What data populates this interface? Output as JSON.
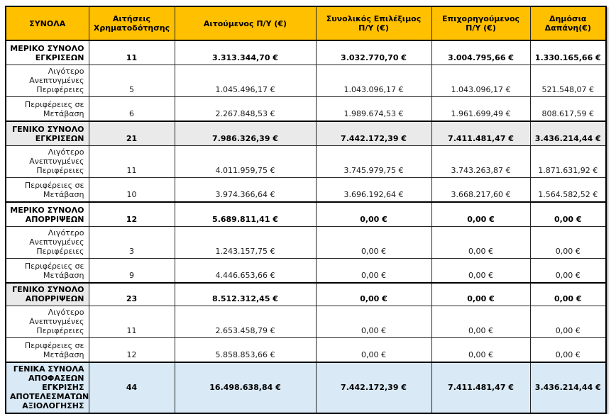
{
  "colors": {
    "header_bg": "#FFC000",
    "gray_row_bg": "#EAEAEA",
    "grand_total_bg": "#D9E9F5",
    "border": "#000000"
  },
  "table": {
    "columns": [
      {
        "label": "ΣΥΝΟΛΑ"
      },
      {
        "label": "Αιτήσεις Χρηματοδότησης"
      },
      {
        "label": "Αιτούμενος Π/Υ (€)"
      },
      {
        "label": "Συνολικός Επιλέξιμος Π/Υ (€)"
      },
      {
        "label": "Επιχορηγούμενος Π/Υ (€)"
      },
      {
        "label": "Δημόσια Δαπάνη(€)"
      }
    ],
    "rows": [
      {
        "variant": "section",
        "cells": [
          "ΜΕΡΙΚΟ ΣΥΝΟΛΟ ΕΓΚΡΙΣΕΩΝ",
          "11",
          "3.313.344,70 €",
          "3.032.770,70 €",
          "3.004.795,66 €",
          "1.330.165,66 €"
        ]
      },
      {
        "variant": "sub",
        "cells": [
          "Λιγότερο Ανεπτυγμένες Περιφέρειες",
          "5",
          "1.045.496,17 €",
          "1.043.096,17 €",
          "1.043.096,17 €",
          "521.548,07 €"
        ]
      },
      {
        "variant": "sub",
        "cells": [
          "Περιφέρειες σε Μετάβαση",
          "6",
          "2.267.848,53 €",
          "1.989.674,53 €",
          "1.961.699,49 €",
          "808.617,59 €"
        ]
      },
      {
        "variant": "section-gray",
        "cells": [
          "ΓΕΝΙΚΟ ΣΥΝΟΛΟ ΕΓΚΡΙΣΕΩΝ",
          "21",
          "7.986.326,39 €",
          "7.442.172,39 €",
          "7.411.481,47 €",
          "3.436.214,44 €"
        ]
      },
      {
        "variant": "sub",
        "cells": [
          "Λιγότερο Ανεπτυγμένες Περιφέρειες",
          "11",
          "4.011.959,75 €",
          "3.745.979,75 €",
          "3.743.263,87 €",
          "1.871.631,92 €"
        ]
      },
      {
        "variant": "sub",
        "cells": [
          "Περιφέρειες σε Μετάβαση",
          "10",
          "3.974.366,64 €",
          "3.696.192,64 €",
          "3.668.217,60 €",
          "1.564.582,52 €"
        ]
      },
      {
        "variant": "section",
        "cells": [
          "ΜΕΡΙΚΟ ΣΥΝΟΛΟ ΑΠΟΡΡΙΨΕΩΝ",
          "12",
          "5.689.811,41 €",
          "0,00 €",
          "0,00 €",
          "0,00 €"
        ]
      },
      {
        "variant": "sub",
        "cells": [
          "Λιγότερο Ανεπτυγμένες Περιφέρειες",
          "3",
          "1.243.157,75 €",
          "0,00 €",
          "0,00 €",
          "0,00 €"
        ]
      },
      {
        "variant": "sub",
        "cells": [
          "Περιφέρειες σε Μετάβαση",
          "9",
          "4.446.653,66 €",
          "0,00 €",
          "0,00 €",
          "0,00 €"
        ]
      },
      {
        "variant": "section-gray-label",
        "cells": [
          "ΓΕΝΙΚΟ ΣΥΝΟΛΟ ΑΠΟΡΡΙΨΕΩΝ",
          "23",
          "8.512.312,45 €",
          "0,00 €",
          "0,00 €",
          "0,00 €"
        ]
      },
      {
        "variant": "sub",
        "cells": [
          "Λιγότερο Ανεπτυγμένες Περιφέρειες",
          "11",
          "2.653.458,79 €",
          "0,00 €",
          "0,00 €",
          "0,00 €"
        ]
      },
      {
        "variant": "sub",
        "cells": [
          "Περιφέρειες σε Μετάβαση",
          "12",
          "5.858.853,66 €",
          "0,00 €",
          "0,00 €",
          "0,00 €"
        ]
      },
      {
        "variant": "grand",
        "cells": [
          "ΓΕΝΙΚΑ ΣΥΝΟΛΑ ΑΠΟΦΑΣΕΩΝ ΕΓΚΡΙΣΗΣ ΑΠΟΤΕΛΕΣΜΑΤΩΝ ΑΞΙΟΛΟΓΗΣΗΣ",
          "44",
          "16.498.638,84 €",
          "7.442.172,39 €",
          "7.411.481,47 €",
          "3.436.214,44 €"
        ]
      }
    ]
  }
}
